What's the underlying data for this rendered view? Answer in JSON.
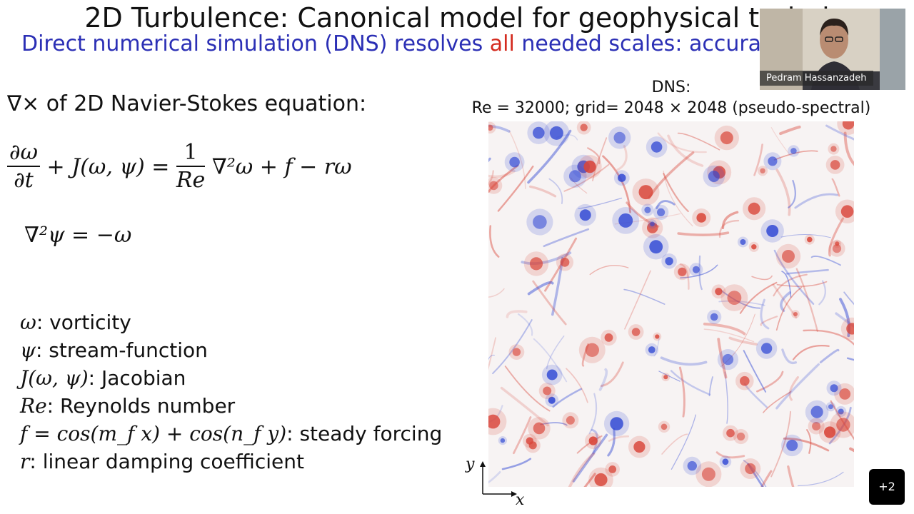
{
  "slide": {
    "title": "2D Turbulence: Canonical model for geophysical turbul",
    "subtitle_part1": "Direct numerical simulation (DNS) resolves ",
    "subtitle_highlight": "all",
    "subtitle_part2": " needed scales: accurate bu",
    "curl_heading": "∇× of 2D Navier-Stokes equation:",
    "equation_lhs_num": "∂ω",
    "equation_lhs_den": "∂t",
    "equation_mid": "+ J(ω, ψ) =",
    "equation_frac_num": "1",
    "equation_frac_den": "Re",
    "equation_rhs": "∇²ω + f − rω",
    "poisson": "∇²ψ = −ω",
    "definitions": [
      {
        "sym": "ω",
        "text": ": vorticity"
      },
      {
        "sym": "ψ",
        "text": ": stream-function"
      },
      {
        "sym": "J(ω, ψ)",
        "text": ": Jacobian"
      },
      {
        "sym": "Re",
        "text": ": Reynolds number"
      },
      {
        "sym": "f = cos(m_f x) + cos(n_f y)",
        "text": ": steady forcing"
      },
      {
        "sym": "r",
        "text": ": linear damping coefficient"
      }
    ],
    "dns_label": "DNS:",
    "dns_params": "Re = 32000; grid= 2048 × 2048 (pseudo-spectral)",
    "axis_x": "x",
    "axis_y": "y"
  },
  "video": {
    "speaker_name": "Pedram Hassanzadeh"
  },
  "overflow_badge": "+2",
  "colors": {
    "subtitle_blue": "#2b2fb5",
    "highlight_red": "#d42a1e",
    "vortex_red": "#d9463a",
    "vortex_blue": "#3048d4"
  }
}
